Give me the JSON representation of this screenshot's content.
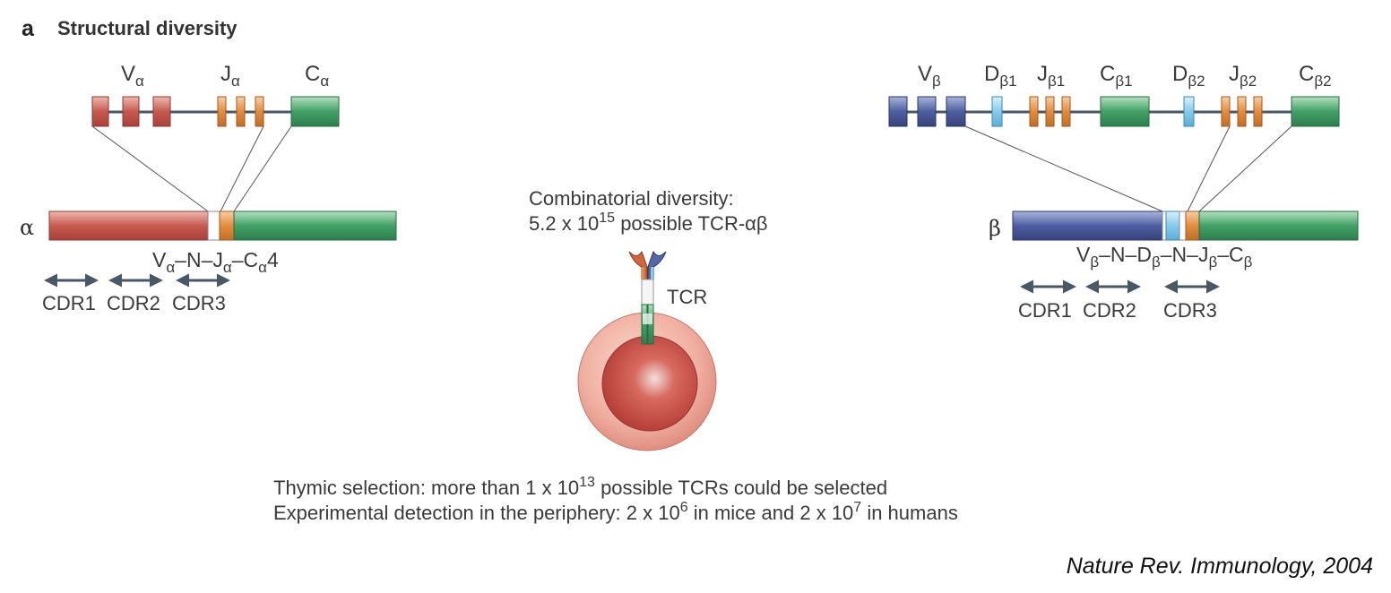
{
  "panel": {
    "label": "a",
    "title": "Structural diversity"
  },
  "alpha_locus": {
    "labels": {
      "v": {
        "base": "V",
        "sub": "α"
      },
      "j": {
        "base": "J",
        "sub": "α"
      },
      "c": {
        "base": "C",
        "sub": "α"
      }
    }
  },
  "alpha_chain": {
    "symbol": "α",
    "rearrangement": [
      {
        "base": "V",
        "sub": "α"
      },
      {
        "base": "–N–"
      },
      {
        "base": "J",
        "sub": "α"
      },
      {
        "base": "–"
      },
      {
        "base": "C",
        "sub": "α"
      },
      {
        "base": "4"
      }
    ],
    "cdrs": [
      "CDR1",
      "CDR2",
      "CDR3"
    ]
  },
  "beta_locus": {
    "labels": {
      "v": {
        "base": "V",
        "sub": "β"
      },
      "d1": {
        "base": "D",
        "sub": "β1"
      },
      "j1": {
        "base": "J",
        "sub": "β1"
      },
      "c1": {
        "base": "C",
        "sub": "β1"
      },
      "d2": {
        "base": "D",
        "sub": "β2"
      },
      "j2": {
        "base": "J",
        "sub": "β2"
      },
      "c2": {
        "base": "C",
        "sub": "β2"
      }
    }
  },
  "beta_chain": {
    "symbol": "β",
    "rearrangement": [
      {
        "base": "V",
        "sub": "β"
      },
      {
        "base": "–N–"
      },
      {
        "base": "D",
        "sub": "β"
      },
      {
        "base": "–N–"
      },
      {
        "base": "J",
        "sub": "β"
      },
      {
        "base": "–"
      },
      {
        "base": "C",
        "sub": "β"
      }
    ],
    "cdrs": [
      "CDR1",
      "CDR2",
      "CDR3"
    ]
  },
  "combinatorial": {
    "line1": "Combinatorial diversity:",
    "line2": [
      {
        "base": "5.2 x 10"
      },
      {
        "base": "",
        "sup": "15"
      },
      {
        "base": " possible TCR-αβ"
      }
    ]
  },
  "tcr_label": "TCR",
  "thymic": [
    {
      "base": "Thymic selection: more than 1 x 10"
    },
    {
      "base": "",
      "sup": "13"
    },
    {
      "base": " possible TCRs could be selected"
    }
  ],
  "experimental": [
    {
      "base": "Experimental detection in the periphery: 2 x 10"
    },
    {
      "base": "",
      "sup": "6"
    },
    {
      "base": " in mice and 2 x 10"
    },
    {
      "base": "",
      "sup": "7"
    },
    {
      "base": " in humans"
    }
  ],
  "citation": "Nature Rev. Immunology, 2004",
  "colors": {
    "v_alpha": "#c4524a",
    "j_orange": "#e0883a",
    "c_green": "#3f9a62",
    "v_beta": "#4a5a9c",
    "d_light_blue": "#7fc6e8",
    "arrow": "#4a5866",
    "cell_outer": "#f1b3a4",
    "cell_inner": "#c84a42"
  }
}
